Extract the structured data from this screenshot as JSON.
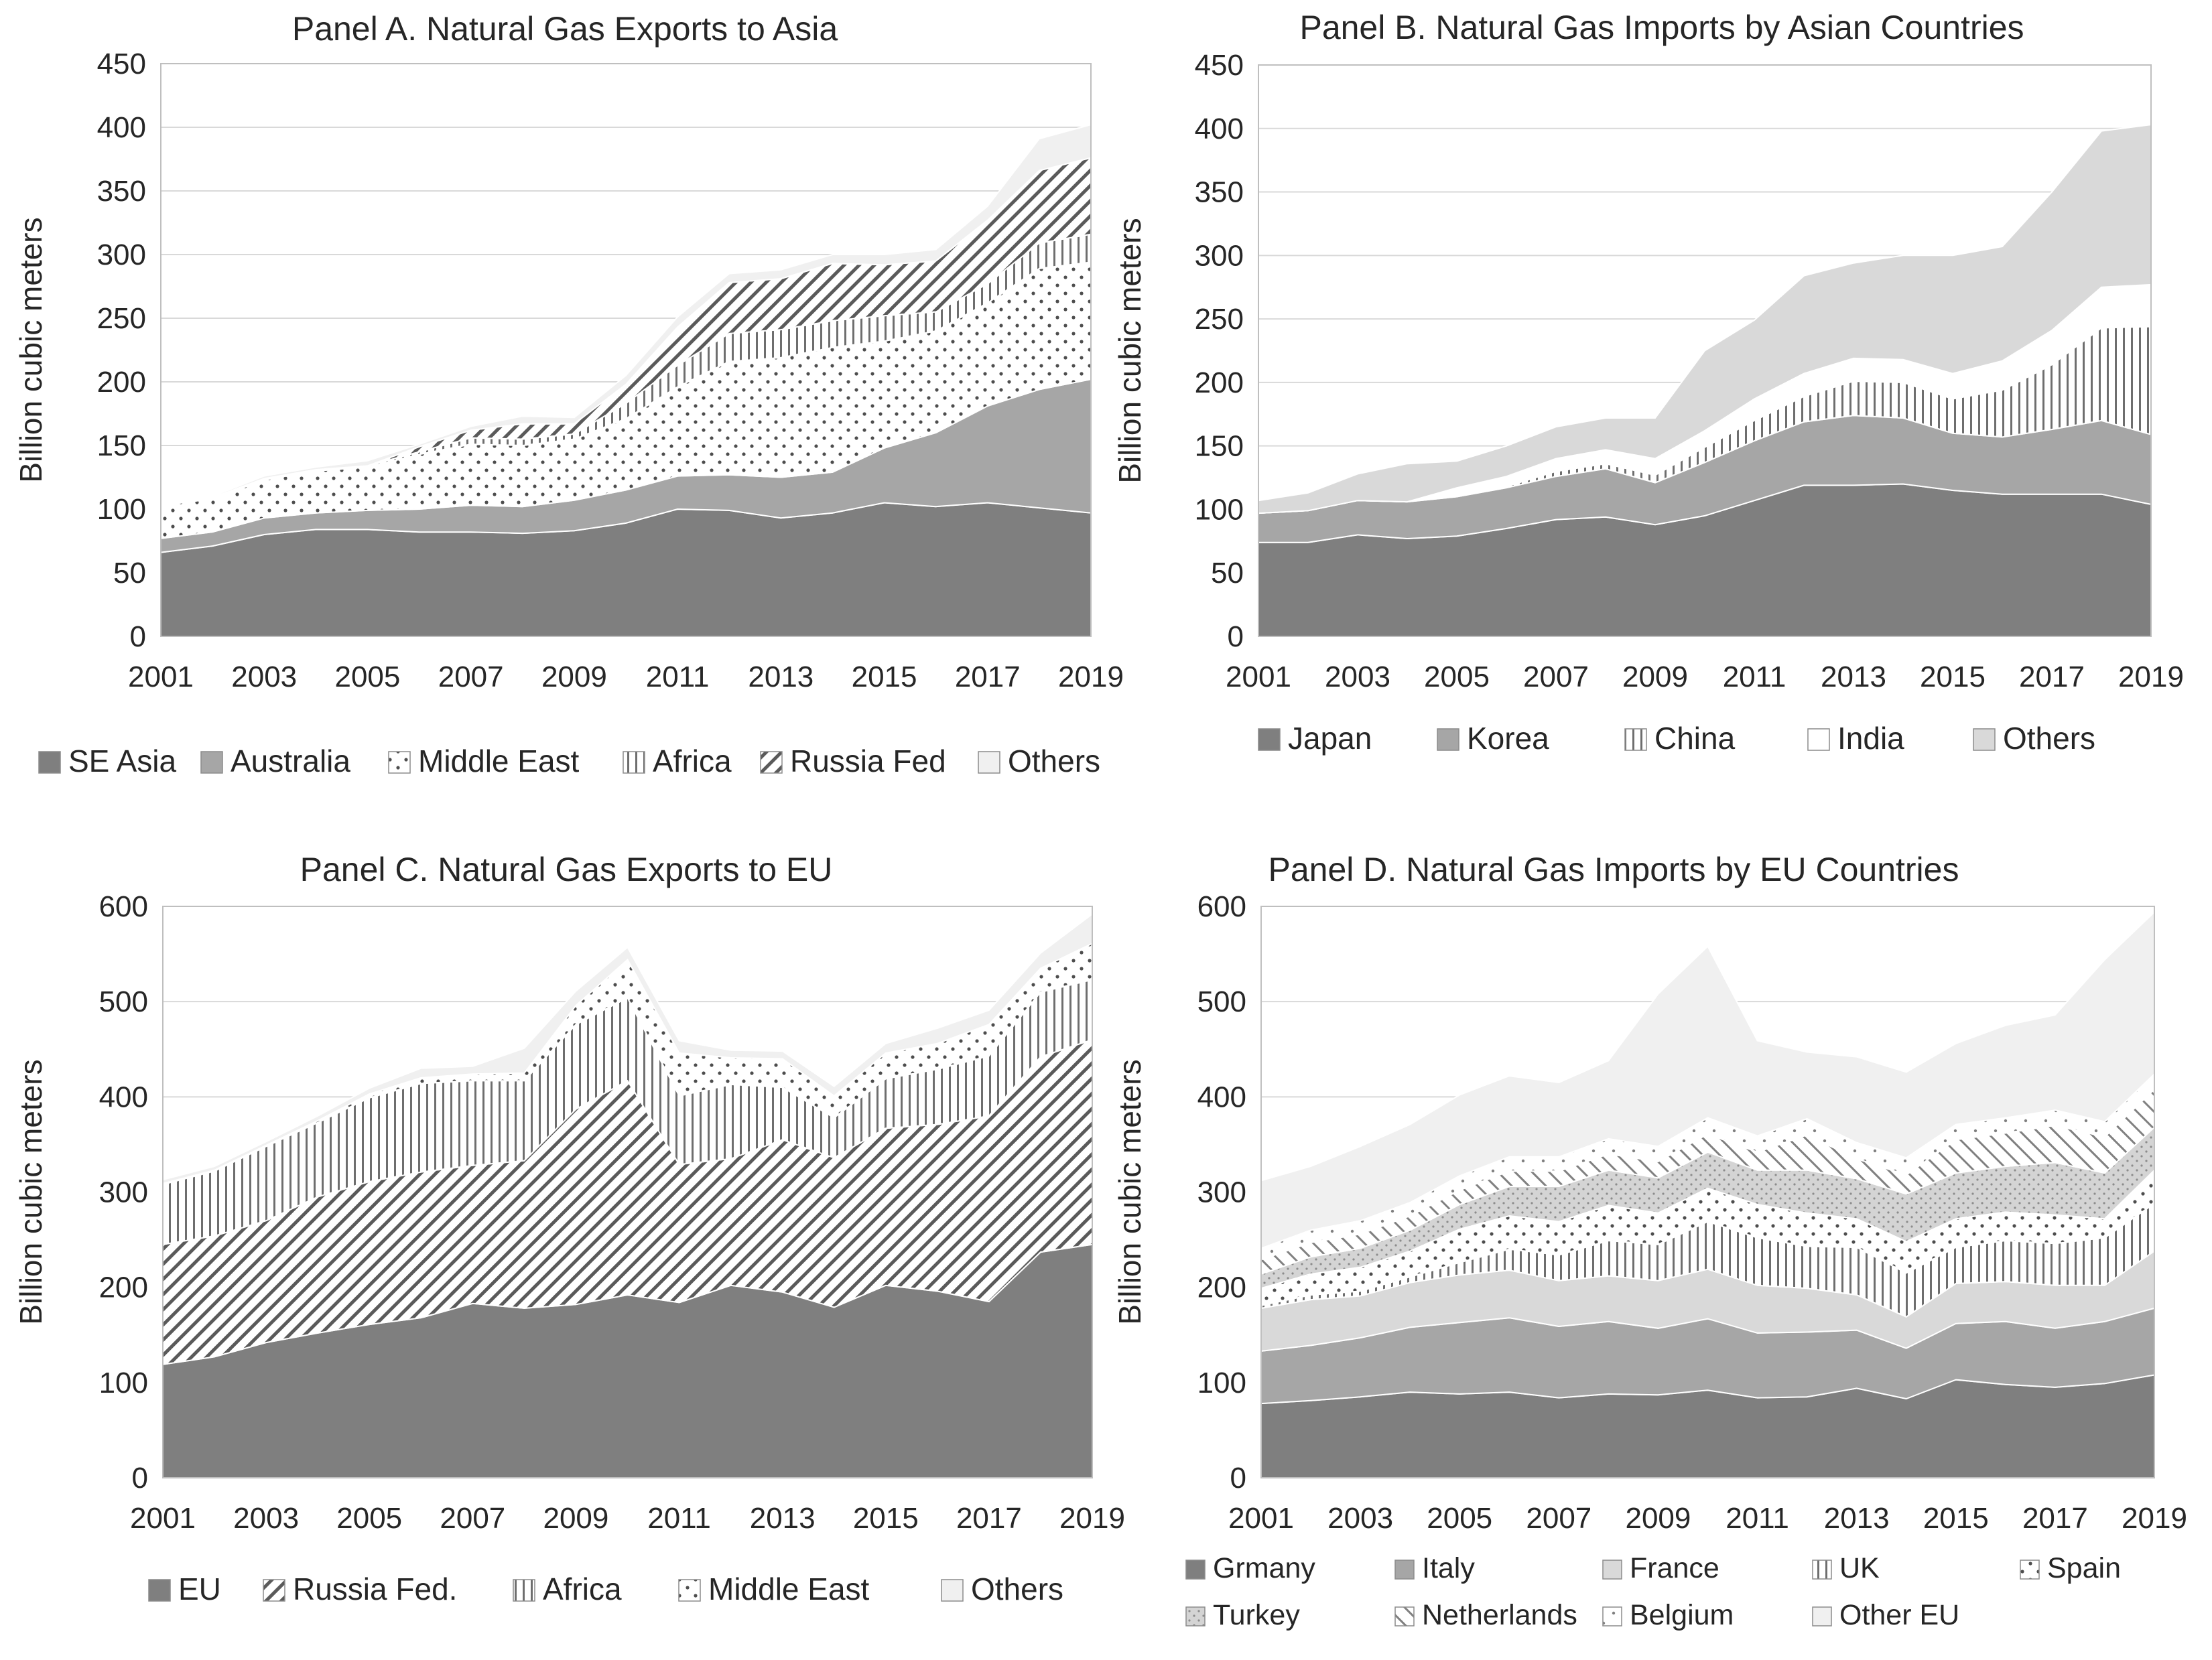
{
  "colors": {
    "dark": "#7f7f7f",
    "mid": "#a6a6a6",
    "light": "#d9d9d9",
    "pale": "#f0f0f0",
    "text": "#262626",
    "pattern_ink": "#6e6e6e"
  },
  "chart_data": [
    {
      "id": "A",
      "type": "area",
      "stacked": true,
      "title": "Panel A. Natural Gas Exports to Asia",
      "ylabel": "Billion cubic meters",
      "ylim": [
        0,
        450
      ],
      "yticks": [
        "0",
        "50",
        "100",
        "150",
        "200",
        "250",
        "300",
        "350",
        "400",
        "450"
      ],
      "xticks": [
        "2001",
        "2003",
        "2005",
        "2007",
        "2009",
        "2011",
        "2013",
        "2015",
        "2017",
        "2019"
      ],
      "x": [
        2001,
        2002,
        2003,
        2004,
        2005,
        2006,
        2007,
        2008,
        2009,
        2010,
        2011,
        2012,
        2013,
        2014,
        2015,
        2016,
        2017,
        2018,
        2019
      ],
      "legend_pos": "bottom",
      "series": [
        {
          "name": "SE Asia",
          "style": "solid-dark",
          "values": [
            66,
            71,
            80,
            84,
            84,
            82,
            82,
            81,
            83,
            89,
            100,
            99,
            93,
            97,
            105,
            102,
            105,
            101,
            97
          ]
        },
        {
          "name": "Australia",
          "style": "solid-mid",
          "values": [
            11,
            11,
            13,
            13,
            15,
            18,
            21,
            21,
            24,
            26,
            26,
            28,
            32,
            32,
            43,
            58,
            76,
            93,
            105
          ]
        },
        {
          "name": "Middle East",
          "style": "dots",
          "values": [
            26,
            26,
            30,
            33,
            34,
            43,
            48,
            48,
            48,
            56,
            70,
            89,
            94,
            98,
            84,
            80,
            81,
            95,
            92
          ]
        },
        {
          "name": "Africa",
          "style": "vlines",
          "values": [
            1,
            1,
            1,
            1,
            1,
            2,
            5,
            5,
            4,
            12,
            17,
            22,
            22,
            21,
            20,
            15,
            15,
            20,
            22
          ]
        },
        {
          "name": "Russia Fed",
          "style": "diag",
          "values": [
            0,
            0,
            0,
            0,
            0,
            4,
            6,
            12,
            8,
            15,
            30,
            40,
            40,
            45,
            40,
            40,
            50,
            57,
            60
          ]
        },
        {
          "name": "Others",
          "style": "pale",
          "values": [
            1,
            1,
            2,
            2,
            4,
            2,
            3,
            6,
            5,
            7,
            8,
            7,
            7,
            7,
            8,
            9,
            11,
            25,
            26
          ]
        }
      ]
    },
    {
      "id": "B",
      "type": "area",
      "stacked": true,
      "title": "Panel B. Natural Gas Imports by Asian Countries",
      "ylabel": "Billion cubic meters",
      "ylim": [
        0,
        450
      ],
      "yticks": [
        "0",
        "50",
        "100",
        "150",
        "200",
        "250",
        "300",
        "350",
        "400",
        "450"
      ],
      "xticks": [
        "2001",
        "2003",
        "2005",
        "2007",
        "2009",
        "2011",
        "2013",
        "2015",
        "2017",
        "2019"
      ],
      "x": [
        2001,
        2002,
        2003,
        2004,
        2005,
        2006,
        2007,
        2008,
        2009,
        2010,
        2011,
        2012,
        2013,
        2014,
        2015,
        2016,
        2017,
        2018,
        2019
      ],
      "legend_pos": "bottom",
      "series": [
        {
          "name": "Japan",
          "style": "solid-dark",
          "values": [
            74,
            74,
            80,
            77,
            79,
            85,
            92,
            94,
            88,
            95,
            107,
            119,
            119,
            120,
            115,
            112,
            112,
            112,
            104
          ]
        },
        {
          "name": "Korea",
          "style": "solid-mid",
          "values": [
            23,
            25,
            27,
            29,
            31,
            32,
            34,
            38,
            33,
            42,
            47,
            50,
            55,
            52,
            45,
            45,
            51,
            58,
            55
          ]
        },
        {
          "name": "China",
          "style": "vlines",
          "values": [
            0,
            0,
            0,
            0,
            1,
            1,
            4,
            4,
            6,
            12,
            16,
            20,
            27,
            28,
            27,
            37,
            51,
            73,
            85
          ]
        },
        {
          "name": "India",
          "style": "white",
          "values": [
            0,
            0,
            0,
            0,
            6,
            8,
            10,
            11,
            13,
            13,
            17,
            18,
            18,
            18,
            20,
            23,
            27,
            32,
            33
          ]
        },
        {
          "name": "Others",
          "style": "solid-light",
          "values": [
            10,
            14,
            21,
            30,
            21,
            24,
            25,
            25,
            32,
            63,
            62,
            77,
            75,
            82,
            93,
            90,
            109,
            123,
            126
          ]
        }
      ]
    },
    {
      "id": "C",
      "type": "area",
      "stacked": true,
      "title": "Panel C. Natural Gas Exports to EU",
      "ylabel": "Billion cubic meters",
      "ylim": [
        0,
        600
      ],
      "yticks": [
        "0",
        "100",
        "200",
        "300",
        "400",
        "500",
        "600"
      ],
      "xticks": [
        "2001",
        "2003",
        "2005",
        "2007",
        "2009",
        "2011",
        "2013",
        "2015",
        "2017",
        "2019"
      ],
      "x": [
        2001,
        2002,
        2003,
        2004,
        2005,
        2006,
        2007,
        2008,
        2009,
        2010,
        2011,
        2012,
        2013,
        2014,
        2015,
        2016,
        2017,
        2018,
        2019
      ],
      "legend_pos": "bottom",
      "series": [
        {
          "name": "EU",
          "style": "solid-dark",
          "values": [
            119,
            127,
            142,
            152,
            161,
            168,
            183,
            178,
            182,
            192,
            184,
            202,
            195,
            179,
            202,
            196,
            185,
            237,
            245
          ]
        },
        {
          "name": "Russia Fed.",
          "style": "diag",
          "values": [
            126,
            127,
            128,
            143,
            150,
            153,
            145,
            155,
            205,
            225,
            145,
            133,
            160,
            157,
            165,
            175,
            195,
            205,
            215
          ]
        },
        {
          "name": "Africa",
          "style": "vlines",
          "values": [
            63,
            68,
            78,
            78,
            88,
            93,
            89,
            84,
            89,
            87,
            72,
            78,
            55,
            42,
            52,
            58,
            63,
            68,
            63
          ]
        },
        {
          "name": "Middle East",
          "style": "dots",
          "values": [
            1,
            1,
            1,
            2,
            4,
            6,
            7,
            8,
            20,
            40,
            45,
            28,
            30,
            23,
            27,
            27,
            33,
            25,
            38
          ]
        },
        {
          "name": "Others",
          "style": "pale",
          "values": [
            4,
            4,
            4,
            5,
            6,
            10,
            8,
            26,
            15,
            13,
            13,
            8,
            8,
            10,
            10,
            16,
            15,
            16,
            31
          ]
        }
      ]
    },
    {
      "id": "D",
      "type": "area",
      "stacked": true,
      "title": "Panel D. Natural Gas Imports by EU Countries",
      "ylabel": "Billion cubic meters",
      "ylim": [
        0,
        600
      ],
      "yticks": [
        "0",
        "100",
        "200",
        "300",
        "400",
        "500",
        "600"
      ],
      "xticks": [
        "2001",
        "2003",
        "2005",
        "2007",
        "2009",
        "2011",
        "2013",
        "2015",
        "2017",
        "2019"
      ],
      "x": [
        2001,
        2002,
        2003,
        2004,
        2005,
        2006,
        2007,
        2008,
        2009,
        2010,
        2011,
        2012,
        2013,
        2014,
        2015,
        2016,
        2017,
        2018,
        2019
      ],
      "legend_pos": "bottom",
      "series": [
        {
          "name": "Grmany",
          "style": "solid-dark",
          "values": [
            78,
            81,
            85,
            90,
            88,
            90,
            84,
            88,
            87,
            92,
            84,
            85,
            94,
            83,
            103,
            98,
            95,
            99,
            108
          ]
        },
        {
          "name": "Italy",
          "style": "solid-mid",
          "values": [
            55,
            58,
            62,
            68,
            75,
            78,
            75,
            76,
            70,
            75,
            68,
            68,
            61,
            53,
            59,
            66,
            62,
            65,
            70
          ]
        },
        {
          "name": "France",
          "style": "solid-light",
          "values": [
            45,
            48,
            44,
            47,
            50,
            50,
            48,
            48,
            50,
            52,
            50,
            46,
            37,
            33,
            42,
            42,
            45,
            38,
            60
          ]
        },
        {
          "name": "UK",
          "style": "vlines",
          "values": [
            3,
            5,
            5,
            6,
            13,
            22,
            27,
            37,
            38,
            50,
            50,
            44,
            50,
            46,
            38,
            43,
            44,
            50,
            50
          ]
        },
        {
          "name": "Spain",
          "style": "dots",
          "values": [
            18,
            22,
            25,
            27,
            35,
            35,
            35,
            37,
            33,
            35,
            35,
            35,
            30,
            33,
            30,
            30,
            30,
            20,
            35
          ]
        },
        {
          "name": "Turkey",
          "style": "crosshatch",
          "values": [
            15,
            18,
            20,
            22,
            26,
            31,
            37,
            37,
            37,
            38,
            36,
            45,
            42,
            50,
            48,
            48,
            55,
            48,
            45
          ]
        },
        {
          "name": "Netherlands",
          "style": "diag-rev",
          "values": [
            15,
            15,
            15,
            15,
            15,
            16,
            16,
            17,
            17,
            19,
            19,
            37,
            21,
            20,
            35,
            35,
            39,
            38,
            40
          ]
        },
        {
          "name": "Belgium",
          "style": "dots-sparse",
          "values": [
            12,
            13,
            14,
            14,
            15,
            15,
            15,
            16,
            16,
            17,
            17,
            17,
            17,
            18,
            16,
            16,
            16,
            16,
            16
          ]
        },
        {
          "name": "Other EU",
          "style": "pale",
          "values": [
            71,
            67,
            78,
            82,
            85,
            85,
            78,
            82,
            160,
            180,
            100,
            70,
            90,
            90,
            85,
            97,
            100,
            170,
            170
          ]
        }
      ]
    }
  ]
}
